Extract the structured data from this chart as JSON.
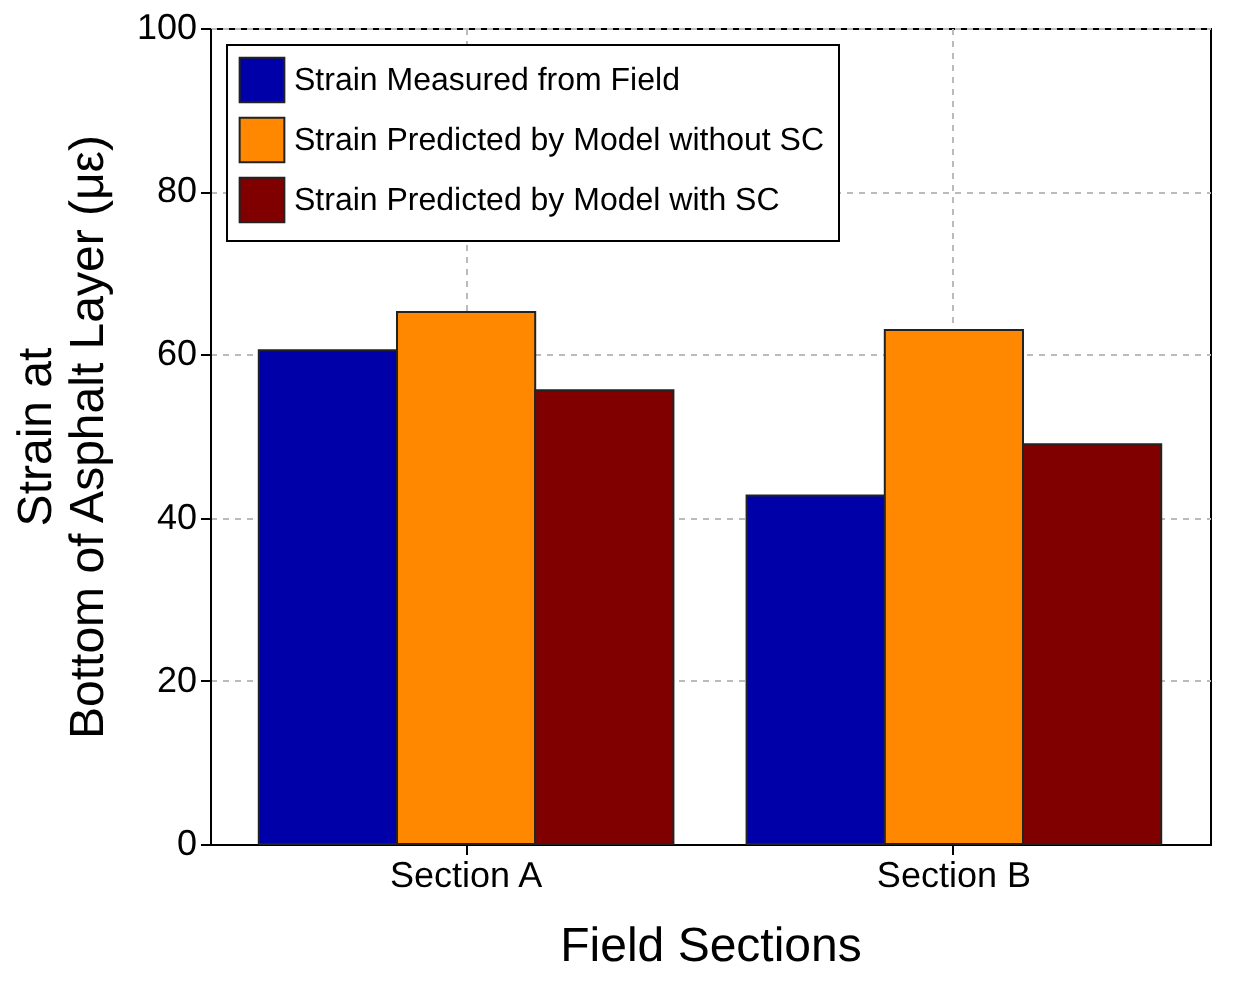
{
  "chart_data": {
    "type": "bar",
    "xlabel": "Field Sections",
    "ylabel": "Strain at\nBottom of Asphalt Layer (με)",
    "categories": [
      "Section A",
      "Section B"
    ],
    "series": [
      {
        "name": "Strain Measured from Field",
        "color": "#0000a8",
        "values": [
          60.5,
          42.7
        ]
      },
      {
        "name": "Strain Predicted by Model without SC",
        "color": "#ff8800",
        "values": [
          65.2,
          63
        ]
      },
      {
        "name": "Strain Predicted by Model with SC",
        "color": "#800000",
        "values": [
          55.6,
          49
        ]
      }
    ],
    "ylim": [
      0,
      100
    ],
    "yticks": [
      0,
      20,
      40,
      60,
      80,
      100
    ],
    "grid": true,
    "legend": "top left"
  }
}
